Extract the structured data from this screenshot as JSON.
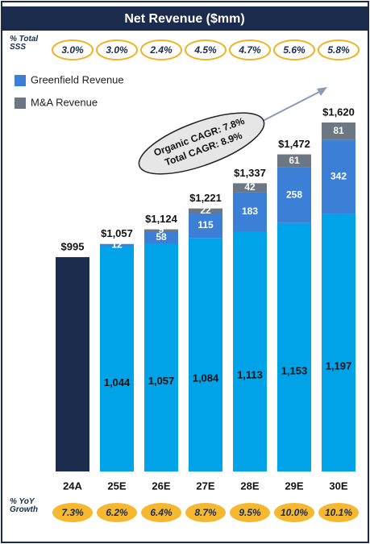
{
  "chart_data": {
    "type": "bar",
    "stacked": true,
    "title": "Net Revenue ($mm)",
    "categories": [
      "24A",
      "25E",
      "26E",
      "27E",
      "28E",
      "29E",
      "30E"
    ],
    "series": [
      {
        "colors": [
          "#1b2b4b",
          "#00a3e8",
          "#00a3e8",
          "#00a3e8",
          "#00a3e8",
          "#00a3e8",
          "#00a3e8"
        ],
        "values": [
          995,
          1044,
          1057,
          1084,
          1113,
          1153,
          1197
        ],
        "value_labels": [
          null,
          "1,044",
          "1,057",
          "1,084",
          "1,113",
          "1,153",
          "1,197"
        ]
      },
      {
        "name": "Greenfield Revenue",
        "color": "#3c7fd6",
        "values": [
          null,
          12,
          58,
          115,
          183,
          258,
          342
        ]
      },
      {
        "name": "M&A Revenue",
        "color": "#6d7683",
        "values": [
          null,
          null,
          9,
          22,
          42,
          61,
          81
        ]
      }
    ],
    "totals": [
      995,
      1057,
      1124,
      1221,
      1337,
      1472,
      1620
    ],
    "total_labels": [
      "$995",
      "$1,057",
      "$1,124",
      "$1,221",
      "$1,337",
      "$1,472",
      "$1,620"
    ],
    "sss": {
      "label": "% Total SSS",
      "values": [
        3.0,
        3.0,
        2.4,
        4.5,
        4.7,
        5.6,
        5.8
      ],
      "value_labels": [
        "3.0%",
        "3.0%",
        "2.4%",
        "4.5%",
        "4.7%",
        "5.6%",
        "5.8%"
      ]
    },
    "growth": {
      "label": "% YoY Growth",
      "values": [
        7.3,
        6.2,
        6.4,
        8.7,
        9.5,
        10.0,
        10.1
      ],
      "value_labels": [
        "7.3%",
        "6.2%",
        "6.4%",
        "8.7%",
        "9.5%",
        "10.0%",
        "10.1%"
      ]
    },
    "annotations": [
      "Organic CAGR: 7.8%",
      "Total CAGR: 8.9%"
    ]
  }
}
